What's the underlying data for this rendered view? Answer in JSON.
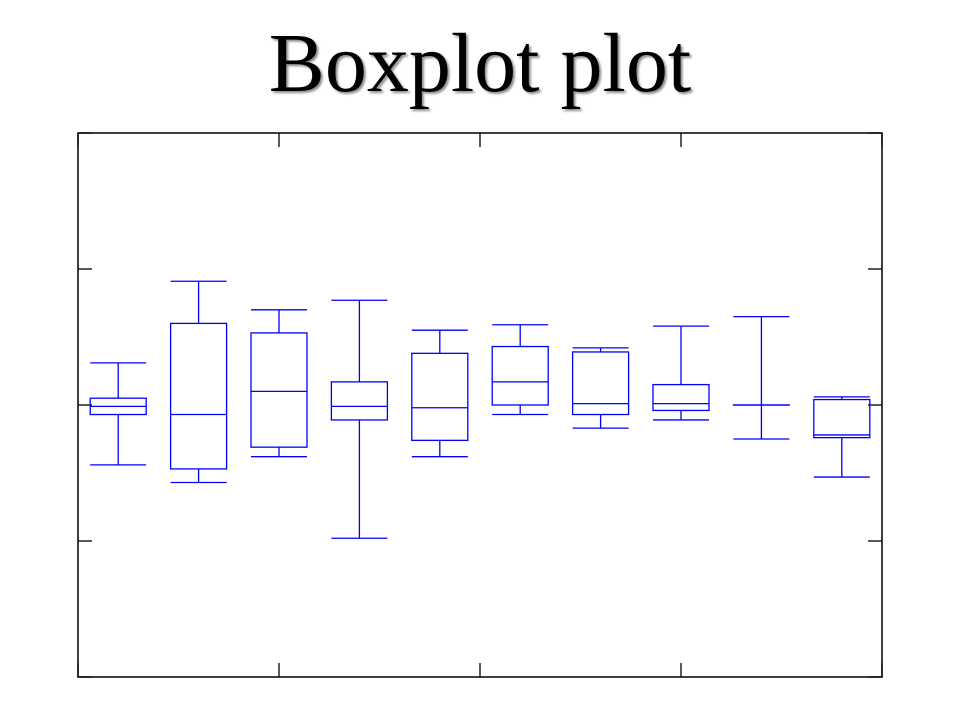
{
  "chart_data": {
    "type": "boxplot",
    "title": "Boxplot plot",
    "xlabel": "",
    "ylabel": "",
    "ylim": [
      -2,
      2
    ],
    "yticks": [
      -2,
      -1,
      0,
      1,
      2
    ],
    "xlim": [
      0.5,
      10.5
    ],
    "xticks": [
      0.5,
      3.0,
      5.5,
      8.0,
      10.5
    ],
    "tick_labels_shown": false,
    "grid": false,
    "box_color": "#0000ff",
    "axis_color": "#000000",
    "boxes": [
      {
        "position": 1,
        "whisker_low": -0.44,
        "q1": -0.07,
        "median": -0.01,
        "q3": 0.05,
        "whisker_high": 0.31
      },
      {
        "position": 2,
        "whisker_low": -0.57,
        "q1": -0.47,
        "median": -0.07,
        "q3": 0.6,
        "whisker_high": 0.91
      },
      {
        "position": 3,
        "whisker_low": -0.38,
        "q1": -0.31,
        "median": 0.1,
        "q3": 0.53,
        "whisker_high": 0.7
      },
      {
        "position": 4,
        "whisker_low": -0.98,
        "q1": -0.11,
        "median": -0.01,
        "q3": 0.17,
        "whisker_high": 0.77
      },
      {
        "position": 5,
        "whisker_low": -0.38,
        "q1": -0.26,
        "median": -0.02,
        "q3": 0.38,
        "whisker_high": 0.55
      },
      {
        "position": 6,
        "whisker_low": -0.07,
        "q1": 0.0,
        "median": 0.17,
        "q3": 0.43,
        "whisker_high": 0.59
      },
      {
        "position": 7,
        "whisker_low": -0.17,
        "q1": -0.07,
        "median": 0.01,
        "q3": 0.39,
        "whisker_high": 0.42
      },
      {
        "position": 8,
        "whisker_low": -0.11,
        "q1": -0.04,
        "median": 0.01,
        "q3": 0.15,
        "whisker_high": 0.58
      },
      {
        "position": 9,
        "whisker_low": -0.25,
        "q1": 0.0,
        "median": 0.0,
        "q3": 0.0,
        "whisker_high": 0.65
      },
      {
        "position": 10,
        "whisker_low": -0.53,
        "q1": -0.24,
        "median": -0.22,
        "q3": 0.04,
        "whisker_high": 0.06
      }
    ]
  }
}
